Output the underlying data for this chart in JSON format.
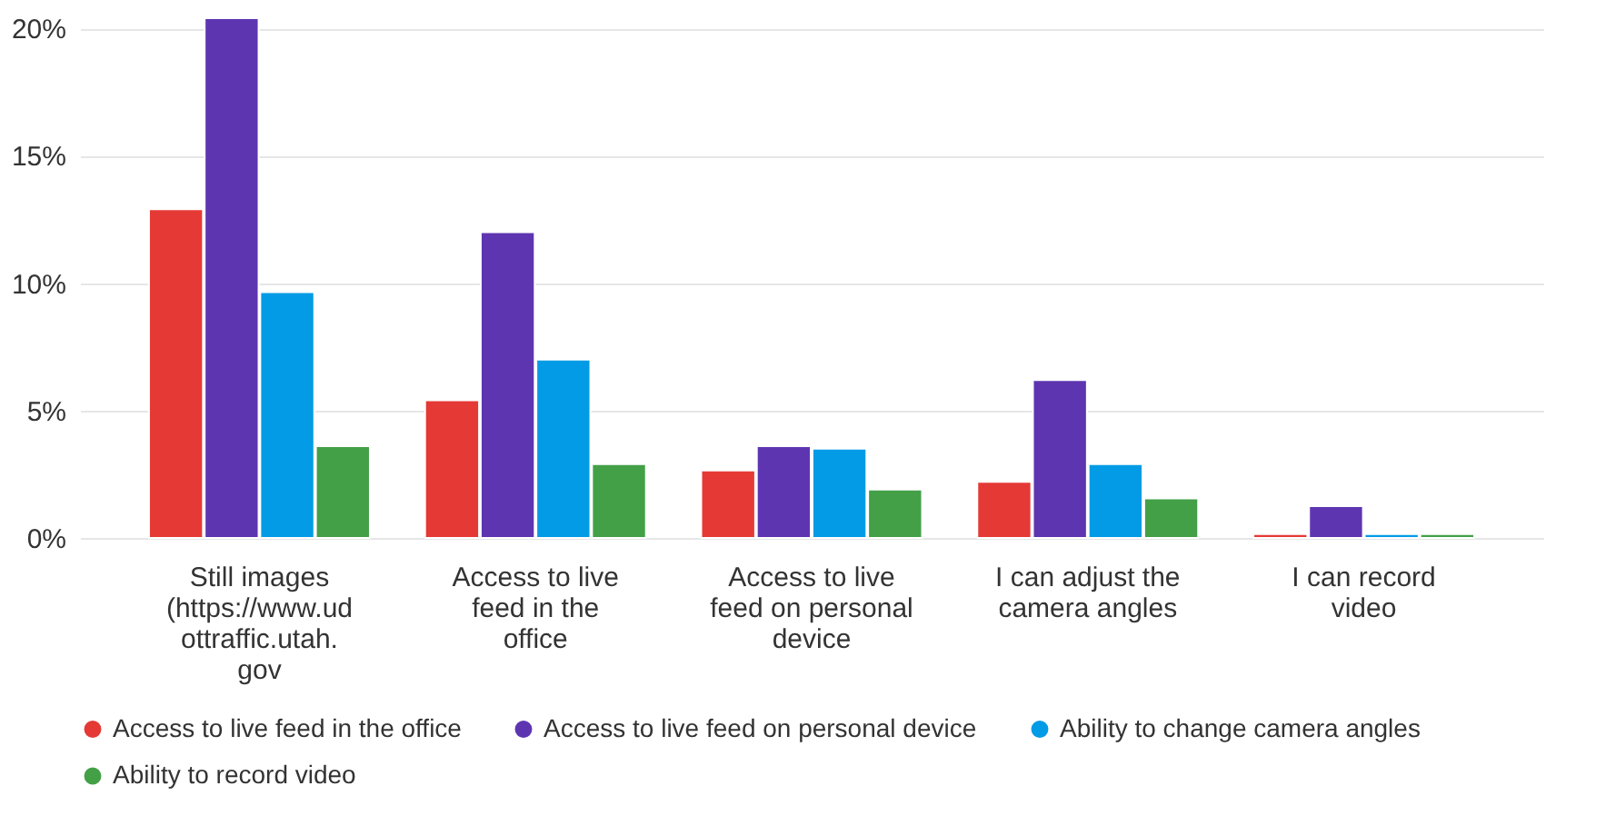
{
  "chart_data": {
    "type": "bar",
    "categories": [
      "Still images (https://www.udottraffic.utah.gov",
      "Access to live feed in the office",
      "Access to live feed on personal device",
      "I can adjust the camera angles",
      "I can record video"
    ],
    "series": [
      {
        "name": "Access to live feed in the office",
        "color": "#e53935",
        "values": [
          12.9,
          5.4,
          2.65,
          2.2,
          0.15
        ]
      },
      {
        "name": "Access to live feed on personal device",
        "color": "#5e35b1",
        "values": [
          20.4,
          12.0,
          3.6,
          6.2,
          1.25
        ]
      },
      {
        "name": "Ability to change camera angles",
        "color": "#039be5",
        "values": [
          9.65,
          7.0,
          3.5,
          2.9,
          0.15
        ]
      },
      {
        "name": "Ability to record video",
        "color": "#43a047",
        "values": [
          3.6,
          2.9,
          1.9,
          1.55,
          0.15
        ]
      }
    ],
    "ylim": [
      0,
      20.4
    ],
    "yticks": [
      {
        "value": 0,
        "label": "0%"
      },
      {
        "value": 5,
        "label": "5%"
      },
      {
        "value": 10,
        "label": "10%"
      },
      {
        "value": 15,
        "label": "15%"
      },
      {
        "value": 20,
        "label": "20%"
      }
    ],
    "grid": "y",
    "legend": "bottom"
  }
}
